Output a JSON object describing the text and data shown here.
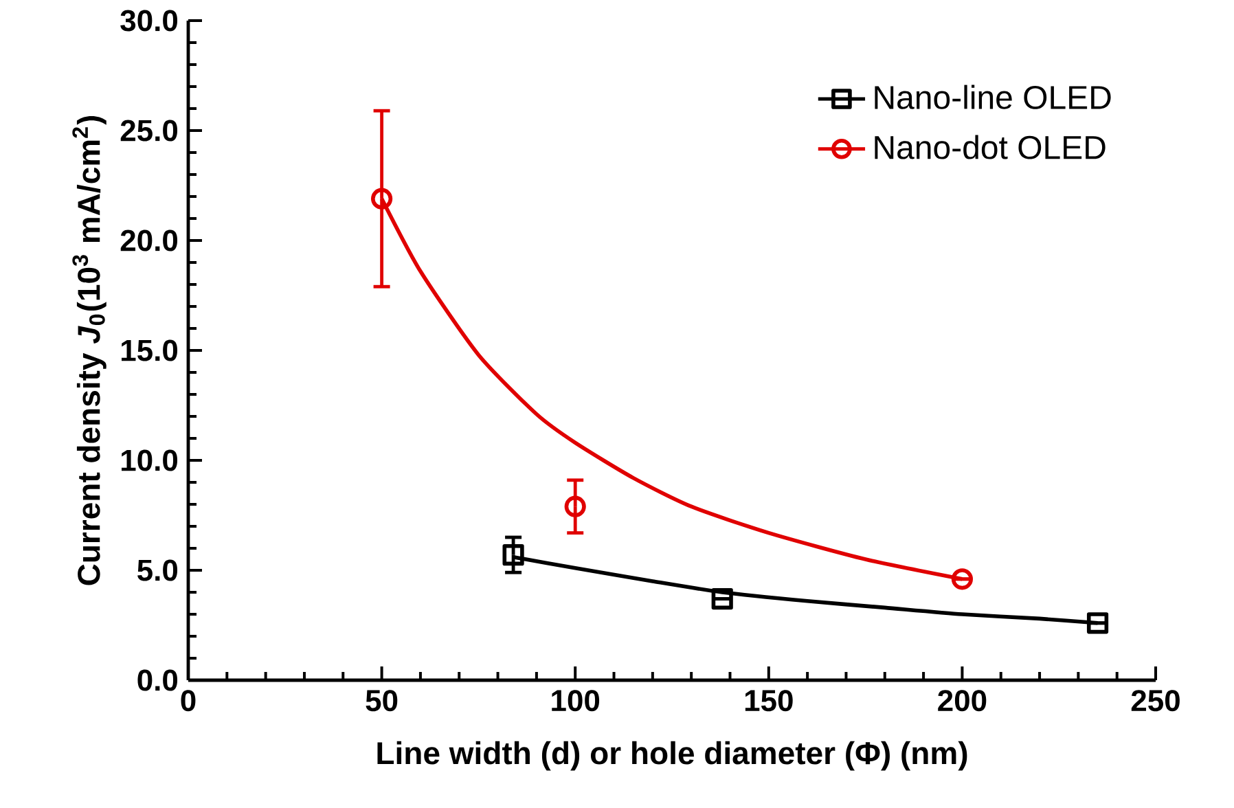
{
  "chart_data": {
    "type": "scatter",
    "xlabel": "Line width (**d**) or hole diameter (**Φ**) (nm)",
    "ylabel": "Current density *J*$_{0}$(10$^{3}$ mA/cm$^{2}$)",
    "xlim": [
      0,
      250
    ],
    "xticks": [
      0,
      50,
      100,
      150,
      200,
      250
    ],
    "ylim": [
      0,
      30
    ],
    "yticks": [
      {
        "value": 0,
        "label": "0.0"
      },
      {
        "value": 5,
        "label": "5.0"
      },
      {
        "value": 10,
        "label": "10.0"
      },
      {
        "value": 15,
        "label": "15.0"
      },
      {
        "value": 20,
        "label": "20.0"
      },
      {
        "value": 25,
        "label": "25.0"
      },
      {
        "value": 30,
        "label": "30.0"
      }
    ],
    "legend": "top right",
    "grid": false,
    "series": [
      {
        "name": "Nano-line OLED",
        "marker": "square",
        "color": "#000000",
        "x": [
          84,
          138,
          235
        ],
        "values": [
          5.7,
          3.7,
          2.6
        ],
        "errors": [
          0.8,
          null,
          null
        ]
      },
      {
        "name": "Nano-dot OLED",
        "marker": "circle",
        "color": "#e00000",
        "x": [
          50,
          100,
          200
        ],
        "values": [
          21.9,
          7.9,
          4.6
        ],
        "errors": [
          4.0,
          1.2,
          null
        ]
      },
      {
        "type": "line",
        "color": "#000000",
        "x": [
          84,
          100,
          120,
          138,
          160,
          180,
          200,
          220,
          235
        ],
        "values": [
          5.6,
          5.1,
          4.5,
          4.0,
          3.6,
          3.3,
          3.0,
          2.8,
          2.6
        ]
      },
      {
        "type": "line",
        "color": "#e00000",
        "x": [
          50,
          60,
          75,
          90,
          100,
          115,
          130,
          150,
          175,
          200
        ],
        "values": [
          21.9,
          18.6,
          14.8,
          12.1,
          10.8,
          9.2,
          7.9,
          6.7,
          5.5,
          4.6
        ]
      }
    ]
  }
}
